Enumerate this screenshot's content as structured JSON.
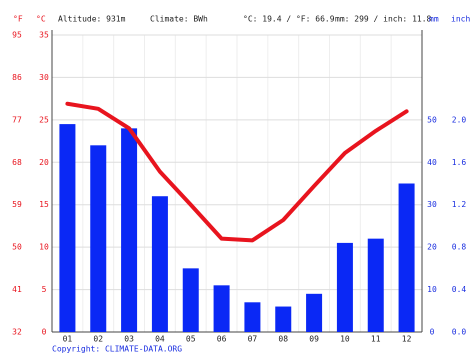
{
  "header": {
    "altitude": "Altitude: 931m",
    "climate": "Climate: BWh",
    "temperature": "°C: 19.4 / °F: 66.9",
    "precipitation": "mm: 299 / inch: 11.8"
  },
  "copyright": "Copyright: CLIMATE-DATA.ORG",
  "chart_data": {
    "type": "climate",
    "categories": [
      "01",
      "02",
      "03",
      "04",
      "05",
      "06",
      "07",
      "08",
      "09",
      "10",
      "11",
      "12"
    ],
    "series": [
      {
        "type": "bar",
        "axis": "y3",
        "color": "#0a28f5",
        "values": [
          49,
          44,
          48,
          32,
          15,
          11,
          7,
          6,
          9,
          21,
          22,
          35
        ]
      },
      {
        "type": "line",
        "color": "#e8141e",
        "values": [
          26.9,
          26.3,
          24.0,
          18.9,
          15.0,
          11.0,
          10.8,
          13.2,
          17.2,
          21.1,
          23.7,
          26.0
        ]
      }
    ],
    "ylabel": "°C",
    "ylim": [
      0,
      35
    ],
    "yticks": [
      0,
      5,
      10,
      15,
      20,
      25,
      30,
      35
    ],
    "y2label": "°F",
    "y2lim": [
      32,
      95
    ],
    "y2ticks": [
      32,
      41,
      50,
      59,
      68,
      77,
      86,
      95
    ],
    "y3label": "mm",
    "y3lim": [
      0,
      70
    ],
    "y3ticks": [
      0,
      10,
      20,
      30,
      40,
      50
    ],
    "y4label": "inch",
    "y4lim": [
      0,
      2.8
    ],
    "y4ticks": [
      {
        "value": 0,
        "label": "0.0"
      },
      {
        "value": 0.4,
        "label": "0.4"
      },
      {
        "value": 0.8,
        "label": "0.8"
      },
      {
        "value": 1.2,
        "label": "1.2"
      },
      {
        "value": 1.6,
        "label": "1.6"
      },
      {
        "value": 2.0,
        "label": "2.0"
      }
    ],
    "grid": true
  }
}
